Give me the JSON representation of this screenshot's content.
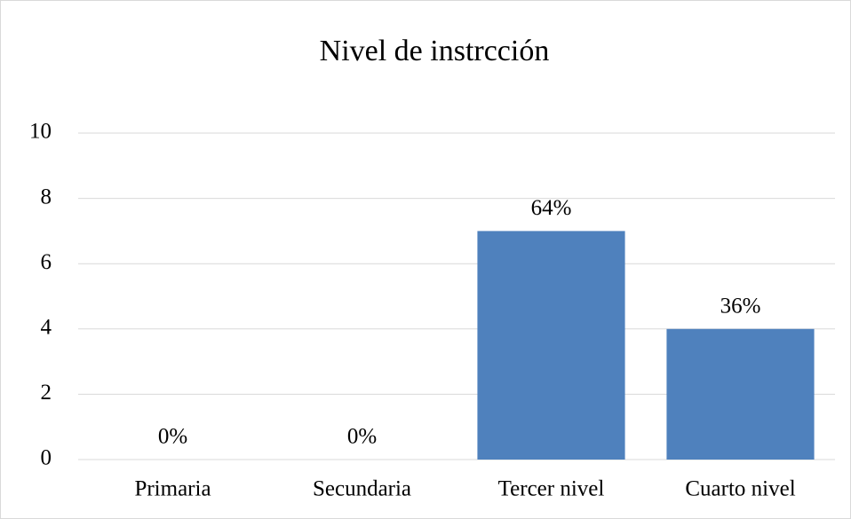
{
  "chart_data": {
    "type": "bar",
    "title": "Nivel de instrcción",
    "categories": [
      "Primaria",
      "Secundaria",
      "Tercer nivel",
      "Cuarto nivel"
    ],
    "values": [
      0,
      0,
      7,
      4
    ],
    "value_labels": [
      "0%",
      "0%",
      "64%",
      "36%"
    ],
    "color": "#4f81bd",
    "ylim": [
      0,
      10
    ],
    "yticks": [
      0,
      2,
      4,
      6,
      8,
      10
    ],
    "grid": true
  }
}
